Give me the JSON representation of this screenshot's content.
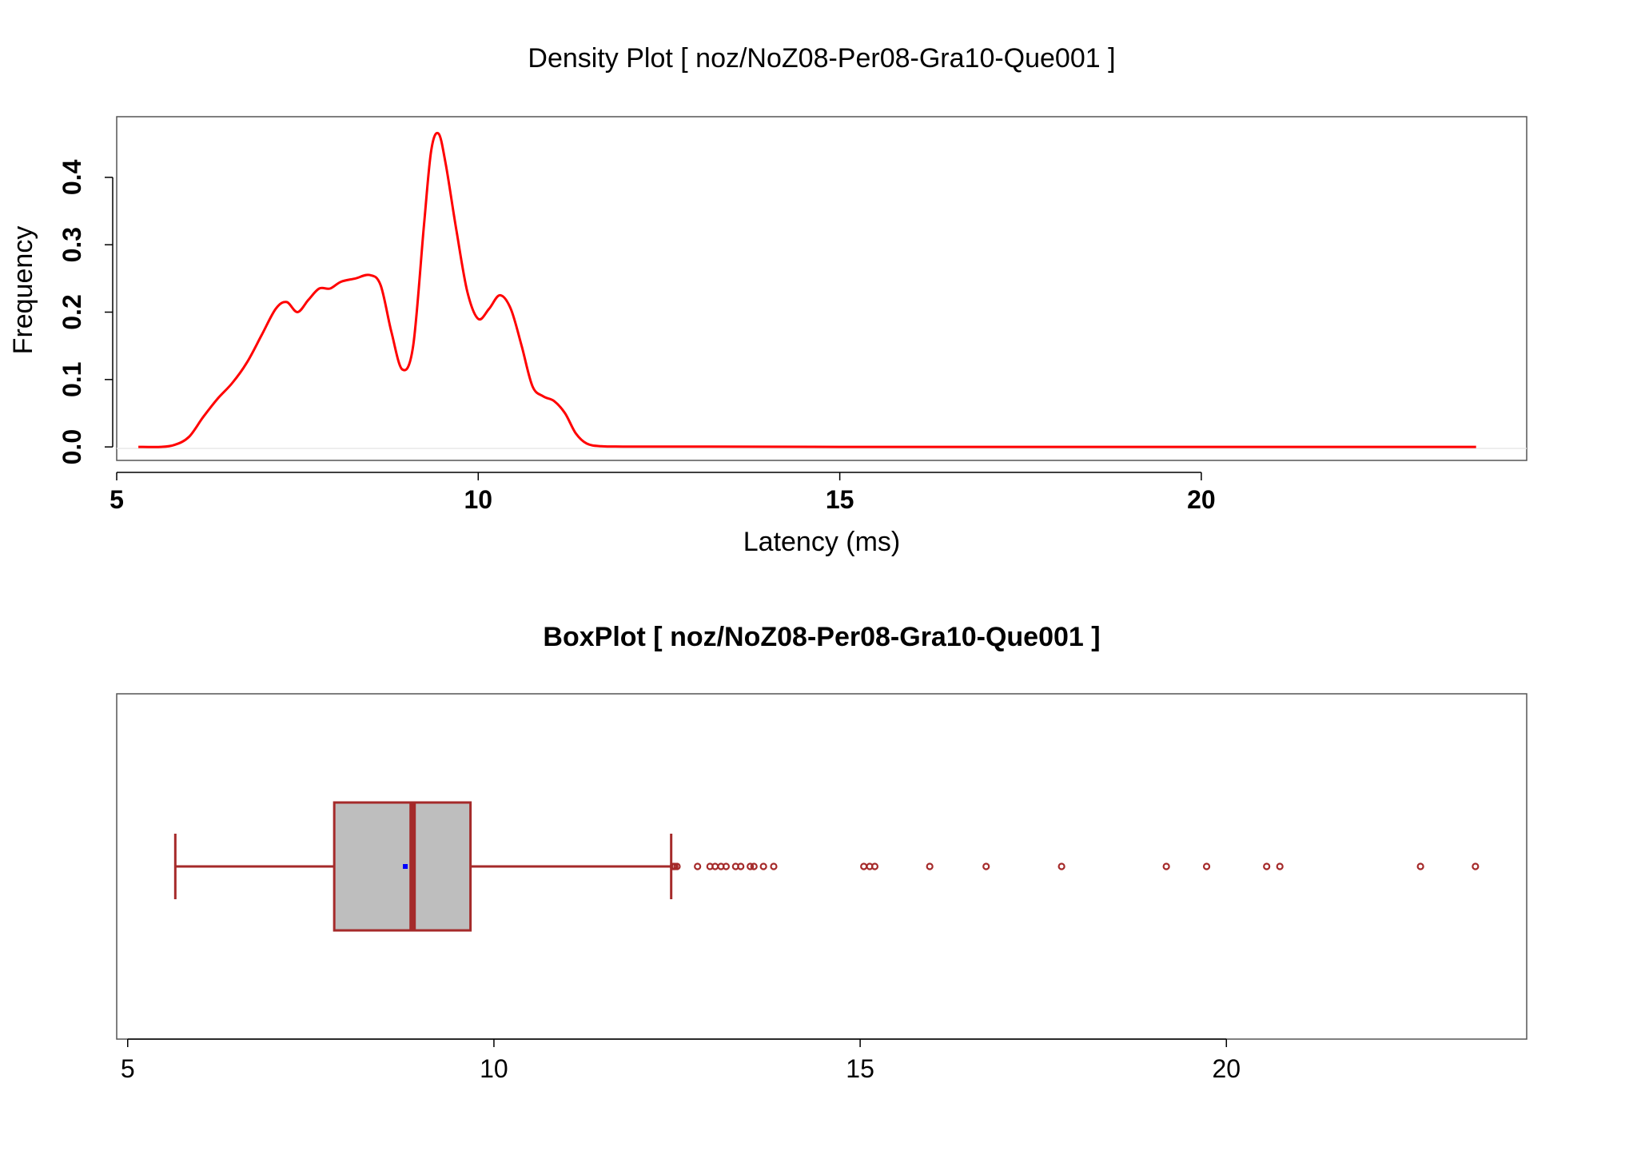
{
  "density": {
    "title": "Density Plot [ noz/NoZ08-Per08-Gra10-Que001 ]",
    "xlabel": "Latency (ms)",
    "ylabel": "Frequency",
    "x_ticks": [
      "5",
      "10",
      "15",
      "20"
    ],
    "y_ticks": [
      "0.0",
      "0.1",
      "0.2",
      "0.3",
      "0.4"
    ],
    "line_color": "#ff0000"
  },
  "boxplot": {
    "title": "BoxPlot [ noz/NoZ08-Per08-Gra10-Que001 ]",
    "x_ticks": [
      "5",
      "10",
      "15",
      "20"
    ],
    "box_fill": "#bebebe",
    "border_color": "#a52a2a",
    "mean_color": "#0000ff"
  },
  "chart_data": [
    {
      "type": "line",
      "title": "Density Plot [ noz/NoZ08-Per08-Gra10-Que001 ]",
      "xlabel": "Latency (ms)",
      "ylabel": "Frequency",
      "xlim": [
        5,
        24.5
      ],
      "ylim": [
        -0.02,
        0.49
      ],
      "x_ticks": [
        5,
        10,
        15,
        20
      ],
      "y_ticks": [
        0.0,
        0.1,
        0.2,
        0.3,
        0.4
      ],
      "grid": false,
      "series": [
        {
          "x": [
            5.3,
            5.6,
            5.8,
            6.0,
            6.2,
            6.4,
            6.6,
            6.8,
            7.0,
            7.2,
            7.35,
            7.5,
            7.65,
            7.8,
            7.95,
            8.1,
            8.3,
            8.5,
            8.65,
            8.8,
            8.95,
            9.1,
            9.25,
            9.35,
            9.45,
            9.55,
            9.7,
            9.85,
            10.0,
            10.15,
            10.3,
            10.45,
            10.6,
            10.75,
            10.9,
            11.05,
            11.2,
            11.35,
            11.5,
            11.7,
            12.0,
            13.0,
            15.0,
            18.0,
            21.0,
            23.8
          ],
          "y": [
            0.0,
            0.0,
            0.003,
            0.015,
            0.045,
            0.072,
            0.095,
            0.125,
            0.165,
            0.205,
            0.215,
            0.2,
            0.218,
            0.235,
            0.235,
            0.245,
            0.25,
            0.255,
            0.24,
            0.17,
            0.115,
            0.15,
            0.33,
            0.44,
            0.465,
            0.42,
            0.32,
            0.23,
            0.19,
            0.205,
            0.225,
            0.205,
            0.15,
            0.09,
            0.075,
            0.068,
            0.05,
            0.02,
            0.005,
            0.001,
            0.0005,
            0.0005,
            0.0,
            0.0,
            0.0,
            0.0
          ]
        }
      ]
    },
    {
      "type": "boxplot",
      "title": "BoxPlot [ noz/NoZ08-Per08-Gra10-Que001 ]",
      "xlim": [
        4.85,
        24.1
      ],
      "x_ticks": [
        5,
        10,
        15,
        20
      ],
      "whisker_low": 5.65,
      "q1": 7.82,
      "median": 8.89,
      "q3": 9.68,
      "whisker_high": 12.42,
      "mean": 8.79,
      "outliers": [
        12.45,
        12.47,
        12.5,
        12.78,
        12.95,
        13.02,
        13.1,
        13.17,
        13.3,
        13.37,
        13.5,
        13.55,
        13.68,
        13.82,
        15.05,
        15.13,
        15.2,
        15.95,
        16.72,
        17.75,
        19.18,
        19.73,
        20.55,
        20.73,
        22.65,
        23.4
      ]
    }
  ]
}
